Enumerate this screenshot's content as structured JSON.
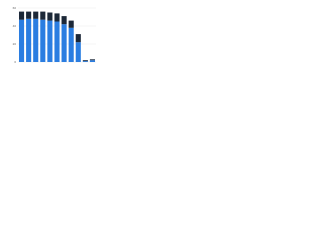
{
  "chart_data": {
    "type": "stacked_bar",
    "categories": [
      null,
      null,
      null,
      null,
      null,
      null,
      null,
      null,
      null,
      null,
      null
    ],
    "series": [
      {
        "name": null,
        "color": "#2a7de1",
        "values": [
          47,
          48,
          48,
          47,
          46,
          45,
          42,
          38,
          22,
          1,
          2
        ]
      },
      {
        "name": null,
        "color": "#1c2838",
        "values": [
          9,
          8,
          8,
          9,
          9,
          9,
          9,
          8,
          9,
          1,
          1
        ]
      }
    ],
    "ylim": [
      0,
      60
    ],
    "yticks": [
      0,
      20,
      40,
      60
    ],
    "grid": true
  }
}
